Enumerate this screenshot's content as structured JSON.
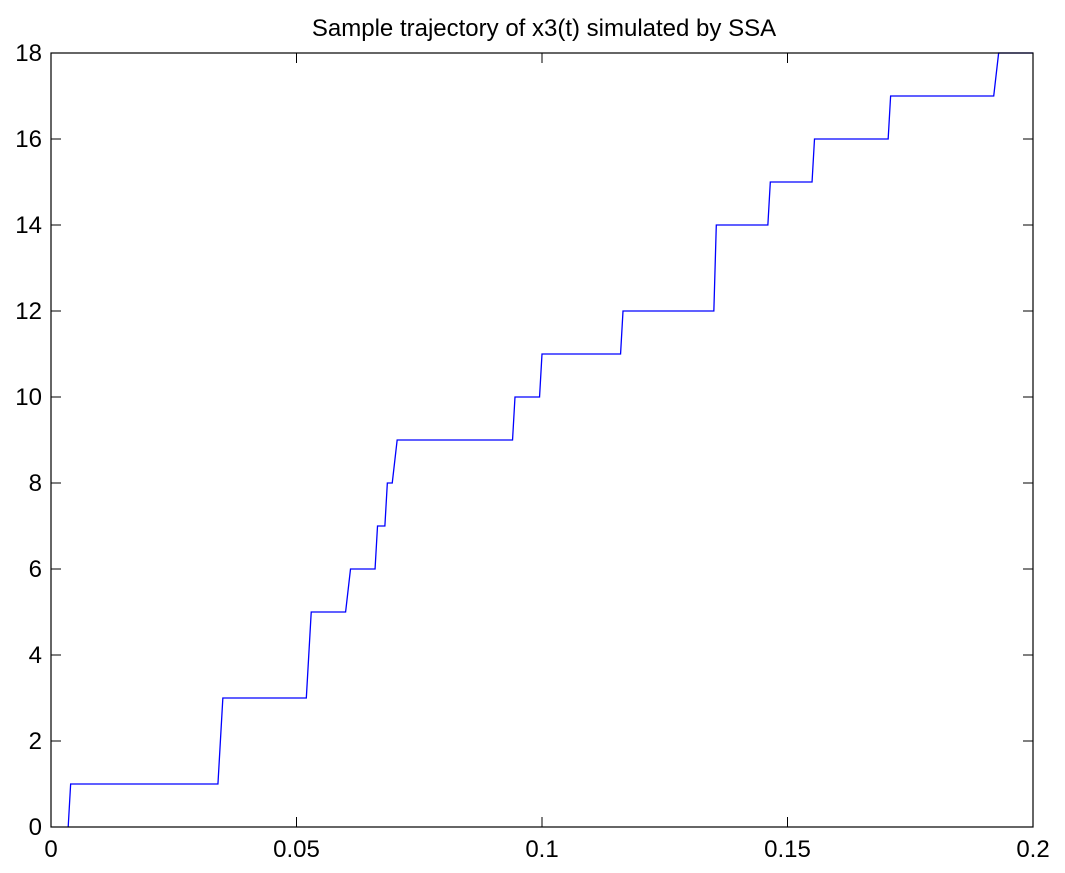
{
  "chart_data": {
    "type": "line",
    "title": "Sample trajectory of x3(t) simulated by SSA",
    "xlabel": "",
    "ylabel": "",
    "xlim": [
      0,
      0.2
    ],
    "ylim": [
      0,
      18
    ],
    "grid": false,
    "xticks": [
      0,
      0.05,
      0.1,
      0.15,
      0.2
    ],
    "xtick_labels": [
      "0",
      "0.05",
      "0.1",
      "0.15",
      "0.2"
    ],
    "yticks": [
      0,
      2,
      4,
      6,
      8,
      10,
      12,
      14,
      16,
      18
    ],
    "ytick_labels": [
      "0",
      "2",
      "4",
      "6",
      "8",
      "10",
      "12",
      "14",
      "16",
      "18"
    ],
    "series": [
      {
        "color": "#0000ff",
        "x": [
          0.0035,
          0.004,
          0.034,
          0.035,
          0.052,
          0.053,
          0.06,
          0.061,
          0.066,
          0.0665,
          0.068,
          0.0685,
          0.0695,
          0.0705,
          0.094,
          0.0945,
          0.0995,
          0.1,
          0.116,
          0.1165,
          0.135,
          0.1355,
          0.146,
          0.1465,
          0.155,
          0.1555,
          0.1705,
          0.171,
          0.192,
          0.193,
          0.2
        ],
        "y": [
          0,
          1,
          1,
          3,
          3,
          5,
          5,
          6,
          6,
          7,
          7,
          8,
          8,
          9,
          9,
          10,
          10,
          11,
          11,
          12,
          12,
          14,
          14,
          15,
          15,
          16,
          16,
          17,
          17,
          18,
          18
        ]
      }
    ]
  }
}
